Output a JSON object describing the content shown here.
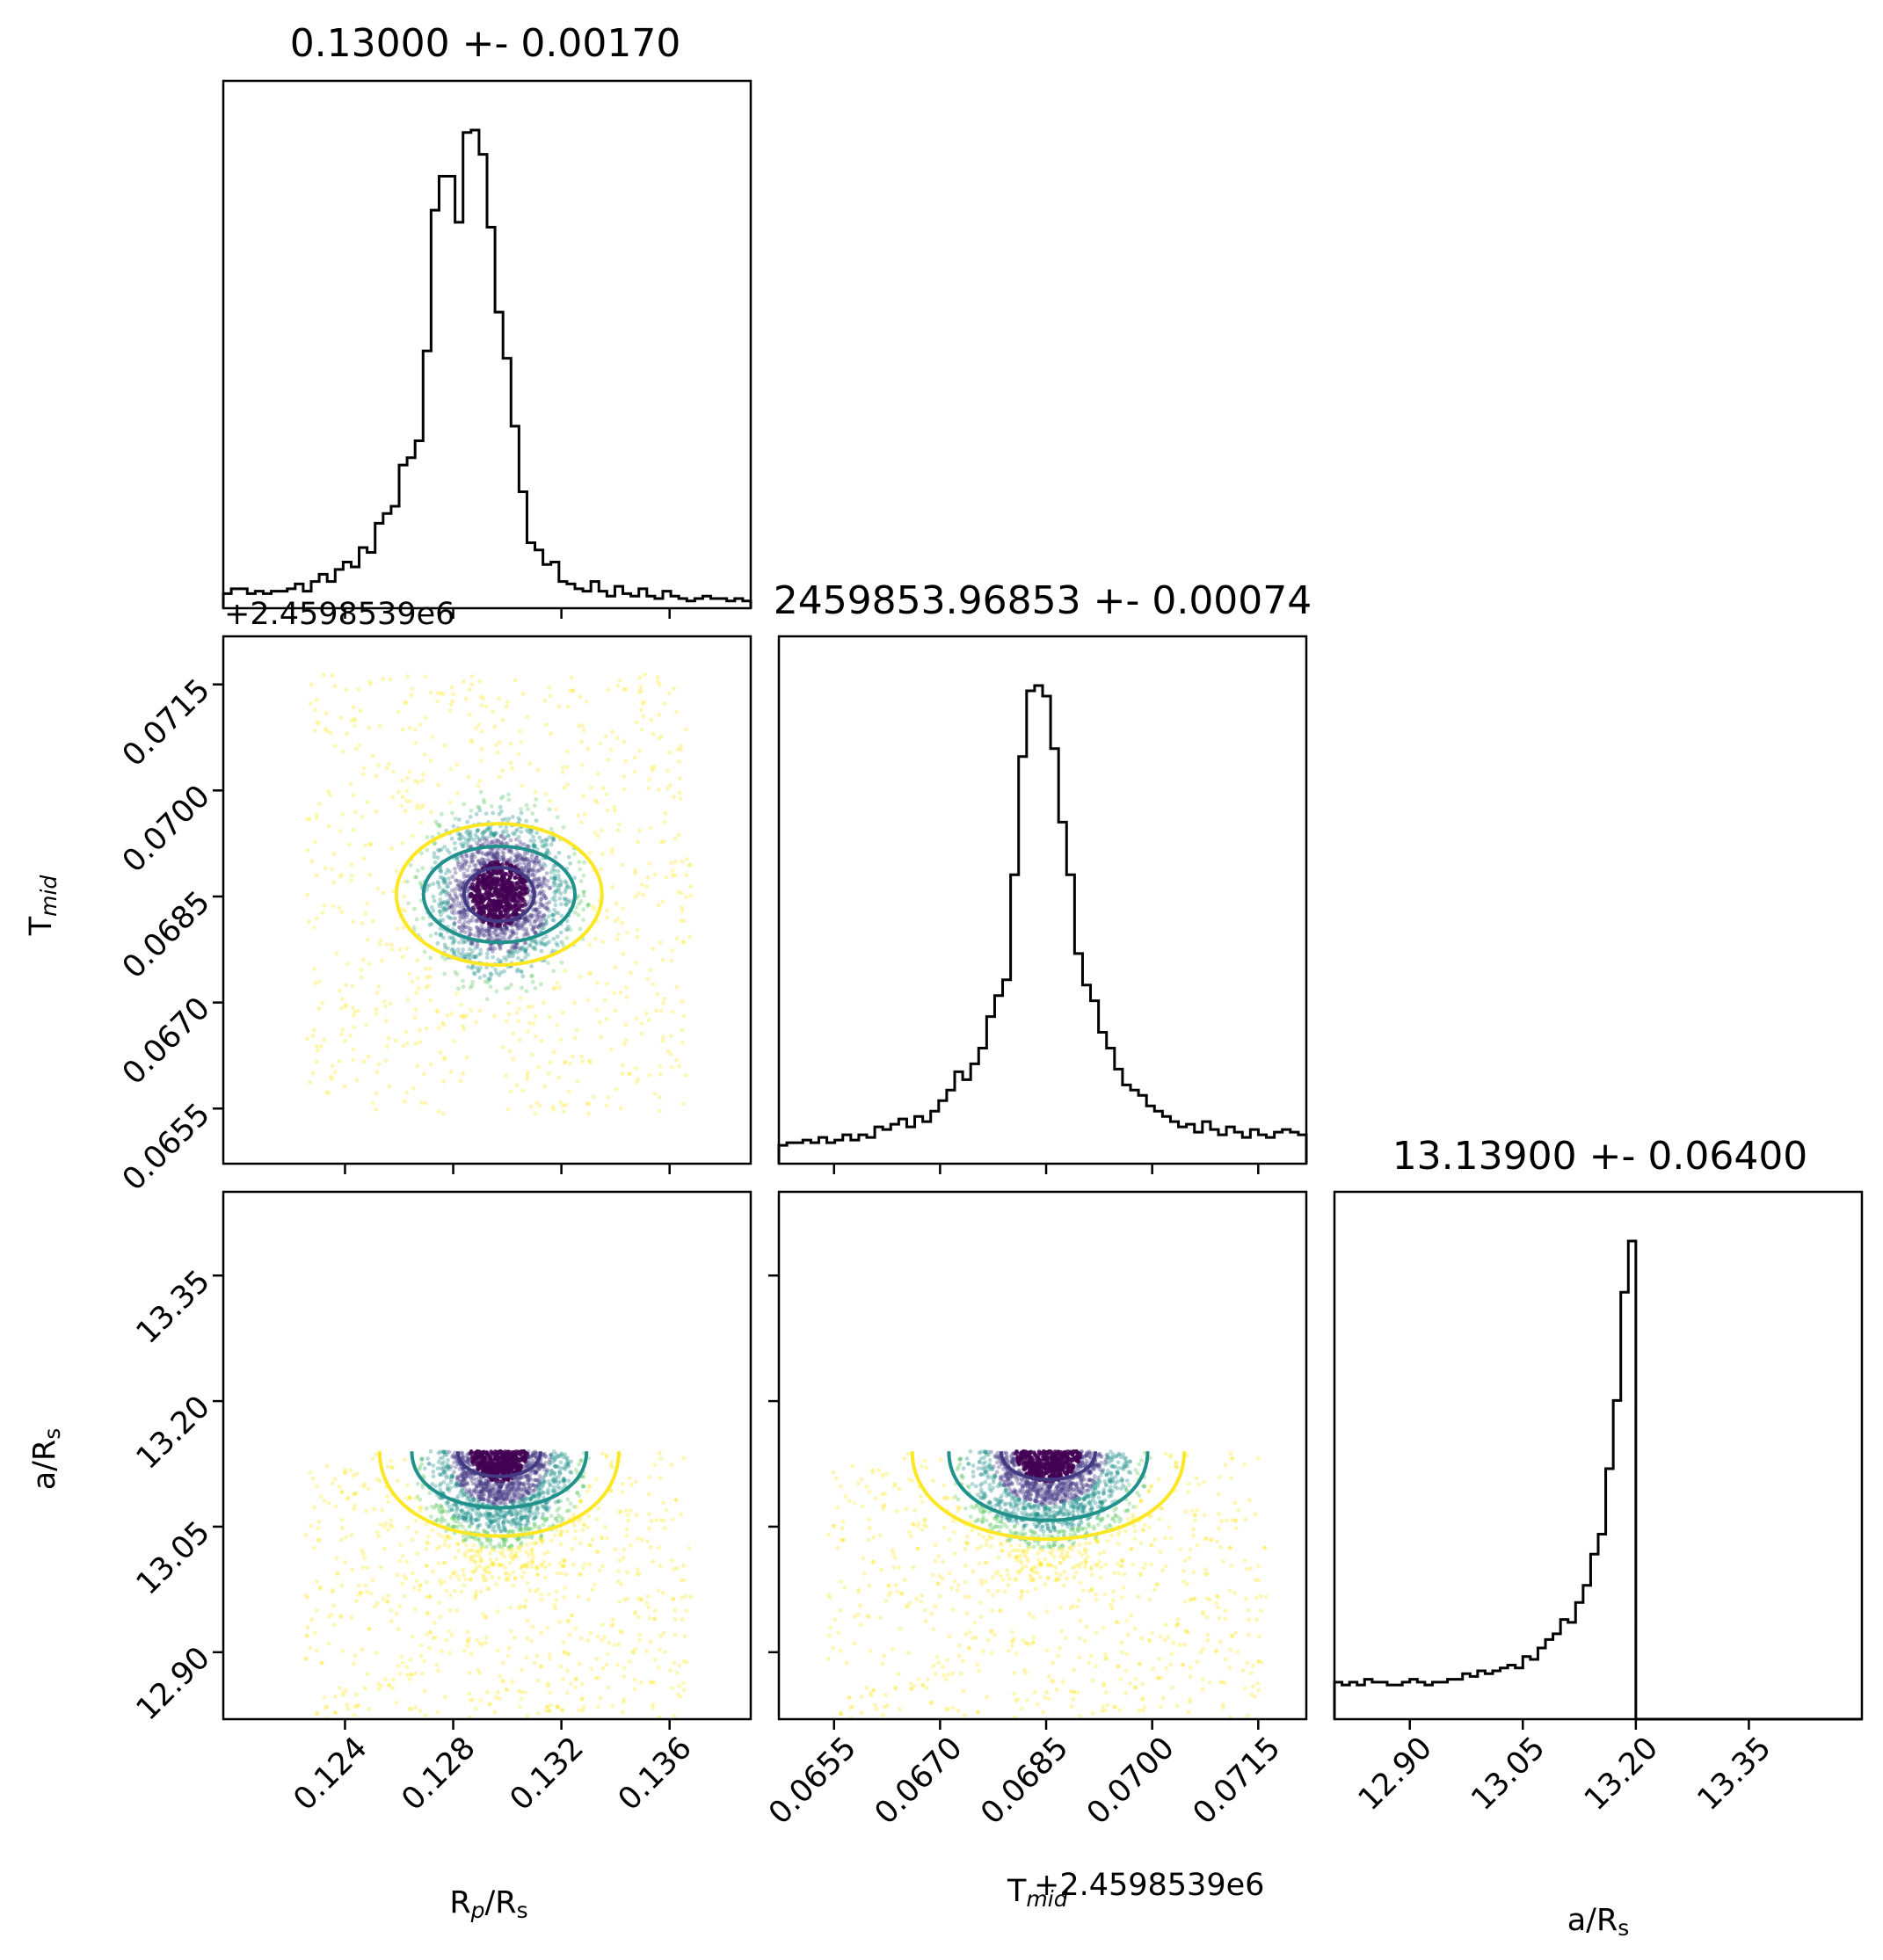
{
  "chart_data": [
    {
      "type": "histogram",
      "panel": "hist-rp",
      "title": "0.13000 +- 0.00170",
      "x_range": [
        0.1195,
        0.139
      ],
      "x_ticks": [
        "0.124",
        "0.128",
        "0.132",
        "0.136"
      ],
      "x_tick_values": [
        0.124,
        0.128,
        0.132,
        0.136
      ],
      "x_offset_label": "+2.4598539e6",
      "bins": {
        "start": 0.1195,
        "width": 0.0003
      },
      "values": [
        6,
        8,
        8,
        6,
        7,
        6,
        7,
        7,
        8,
        10,
        7,
        11,
        14,
        11,
        16,
        19,
        17,
        25,
        23,
        35,
        39,
        42,
        59,
        62,
        69,
        106,
        164,
        178,
        178,
        159,
        196,
        197,
        187,
        157,
        122,
        103,
        75,
        48,
        27,
        24,
        18,
        19,
        11,
        10,
        8,
        7,
        11,
        7,
        5,
        9,
        6,
        5,
        8,
        5,
        4,
        7,
        5,
        4,
        3,
        4,
        5,
        4,
        4,
        3,
        4,
        3
      ]
    },
    {
      "type": "histogram",
      "panel": "hist-tmid",
      "title": "2459853.96853 +- 0.00074",
      "x_range": [
        0.06472,
        0.07218
      ],
      "x_ticks": [
        "0.0655",
        "0.0670",
        "0.0685",
        "0.0700",
        "0.0715"
      ],
      "x_tick_values": [
        0.0655,
        0.067,
        0.0685,
        0.07,
        0.0715
      ],
      "x_offset_label": "+2.4598539e6",
      "bins": {
        "start": 0.06472,
        "width": 0.000126
      },
      "values": [
        7,
        8,
        8,
        9,
        8,
        10,
        8,
        9,
        11,
        9,
        11,
        10,
        14,
        13,
        15,
        17,
        14,
        18,
        16,
        20,
        24,
        28,
        35,
        32,
        38,
        44,
        56,
        64,
        70,
        110,
        155,
        180,
        182,
        178,
        158,
        130,
        110,
        80,
        68,
        62,
        50,
        44,
        36,
        30,
        28,
        26,
        22,
        20,
        18,
        16,
        14,
        15,
        12,
        16,
        13,
        11,
        14,
        12,
        10,
        13,
        11,
        10,
        12,
        13,
        12,
        11
      ]
    },
    {
      "type": "histogram",
      "panel": "hist-ars",
      "title": "13.13900 +- 0.06400",
      "x_range": [
        12.8,
        13.5
      ],
      "x_ticks": [
        "12.90",
        "13.05",
        "13.20",
        "13.35"
      ],
      "x_tick_values": [
        12.9,
        13.05,
        13.2,
        13.35
      ],
      "bins": {
        "start": 12.8,
        "width": 0.01
      },
      "values": [
        13,
        12,
        13,
        12,
        14,
        13,
        13,
        12,
        12,
        13,
        14,
        13,
        12,
        13,
        13,
        14,
        14,
        16,
        15,
        17,
        16,
        17,
        18,
        19,
        18,
        22,
        21,
        25,
        28,
        30,
        35,
        34,
        41,
        47,
        58,
        65,
        88,
        112,
        150,
        168,
        0,
        0,
        0,
        0,
        0,
        0,
        0,
        0,
        0,
        0,
        0,
        0,
        0,
        0,
        0,
        0,
        0,
        0,
        0,
        0,
        0,
        0,
        0,
        0,
        0,
        0,
        0,
        0,
        0,
        0
      ]
    },
    {
      "type": "scatter-contour",
      "panel": "tmid-vs-rp",
      "x_range": [
        0.1195,
        0.139
      ],
      "y_range": [
        0.06472,
        0.07218
      ],
      "ylabel": "T_mid",
      "y_ticks": [
        "0.0715",
        "0.0700",
        "0.0685",
        "0.0670",
        "0.0655"
      ],
      "y_tick_values": [
        0.0715,
        0.07,
        0.0685,
        0.067,
        0.0655
      ],
      "y_offset_label": "+2.4598539e6",
      "center": {
        "x": 0.1297,
        "y": 0.06853
      },
      "spread": {
        "x": 0.0017,
        "y": 0.00074
      },
      "contour_levels": [
        {
          "color": "#443983",
          "rx": 0.0013,
          "ry": 0.00038
        },
        {
          "color": "#21918c",
          "rx": 0.0028,
          "ry": 0.00068
        },
        {
          "color": "#fde725",
          "rx": 0.0038,
          "ry": 0.001
        }
      ]
    },
    {
      "type": "scatter-contour",
      "panel": "ars-vs-rp",
      "x_range": [
        0.1195,
        0.139
      ],
      "y_range": [
        12.82,
        13.45
      ],
      "ylabel": "a/R_s",
      "x_ticks": [
        "0.124",
        "0.128",
        "0.132",
        "0.136"
      ],
      "x_tick_values": [
        0.124,
        0.128,
        0.132,
        0.136
      ],
      "xlabel": "R_p/R_s",
      "y_ticks": [
        "13.35",
        "13.20",
        "13.05",
        "12.90"
      ],
      "y_tick_values": [
        13.35,
        13.2,
        13.05,
        12.9
      ],
      "truncation": 13.14,
      "contour_levels": [
        {
          "color": "#443983",
          "depth": 0.04
        },
        {
          "color": "#21918c",
          "depth": 0.09
        },
        {
          "color": "#fde725",
          "depth": 0.135
        }
      ]
    },
    {
      "type": "scatter-contour",
      "panel": "ars-vs-tmid",
      "x_range": [
        0.06472,
        0.07218
      ],
      "y_range": [
        12.82,
        13.45
      ],
      "x_ticks": [
        "0.0655",
        "0.0670",
        "0.0685",
        "0.0700",
        "0.0715"
      ],
      "x_tick_values": [
        0.0655,
        0.067,
        0.0685,
        0.07,
        0.0715
      ],
      "xlabel": "T_mid",
      "x_offset_label": "+2.4598539e6",
      "truncation": 13.14,
      "contour_levels": [
        {
          "color": "#443983",
          "depth": 0.045
        },
        {
          "color": "#21918c",
          "depth": 0.11
        },
        {
          "color": "#fde725",
          "depth": 0.14
        }
      ]
    }
  ],
  "axis_labels": {
    "rp_rs": {
      "main": "R",
      "sub1": "p",
      "mid": "/R",
      "sub2": "s"
    },
    "tmid_y": {
      "main": "T",
      "sub": "mid"
    },
    "tmid_x": {
      "main": "T",
      "sub": "mid",
      "offset": "+2.4598539e6"
    },
    "ars_y": {
      "main": "a/R",
      "sub": "s"
    },
    "ars_x": {
      "main": "a/R",
      "sub": "s"
    }
  },
  "colors": {
    "viridis_dark": "#440154",
    "viridis_blue": "#443983",
    "viridis_teal": "#21918c",
    "viridis_green": "#5ec962",
    "viridis_yellow": "#fde725"
  }
}
